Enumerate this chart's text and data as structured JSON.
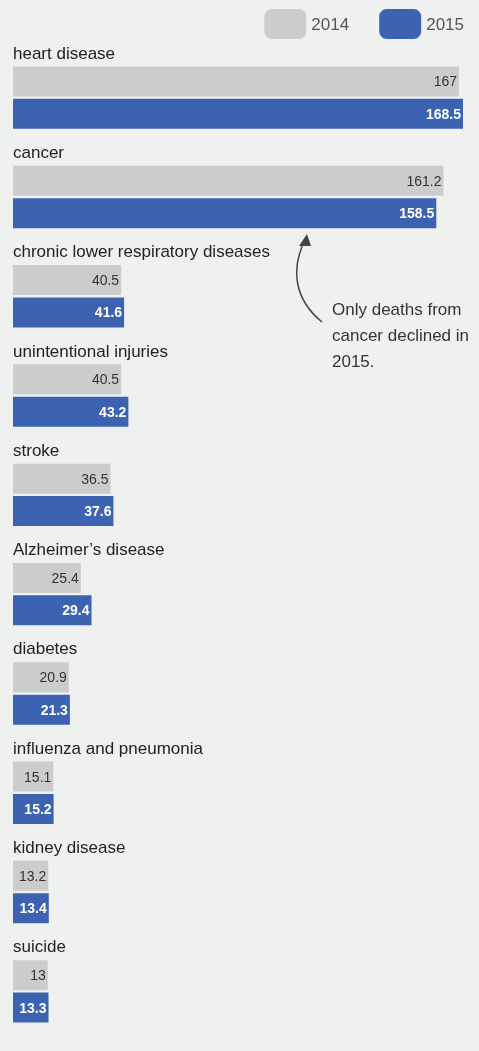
{
  "chart_data": {
    "type": "bar",
    "orientation": "horizontal",
    "categories": [
      "heart disease",
      "cancer",
      "chronic lower respiratory diseases",
      "unintentional injuries",
      "stroke",
      "Alzheimer’s disease",
      "diabetes",
      "influenza and pneumonia",
      "kidney disease",
      "suicide"
    ],
    "series": [
      {
        "name": "2014",
        "color": "#cccccc",
        "values": [
          167,
          161.2,
          40.5,
          40.5,
          36.5,
          25.4,
          20.9,
          15.1,
          13.2,
          13
        ]
      },
      {
        "name": "2015",
        "color": "#3c63b1",
        "values": [
          168.5,
          158.5,
          41.6,
          43.2,
          37.6,
          29.4,
          21.3,
          15.2,
          13.4,
          13.3
        ]
      }
    ],
    "data_labels": true,
    "legend": "top right",
    "annotations": [
      "Only deaths from cancer declined in 2015."
    ]
  }
}
